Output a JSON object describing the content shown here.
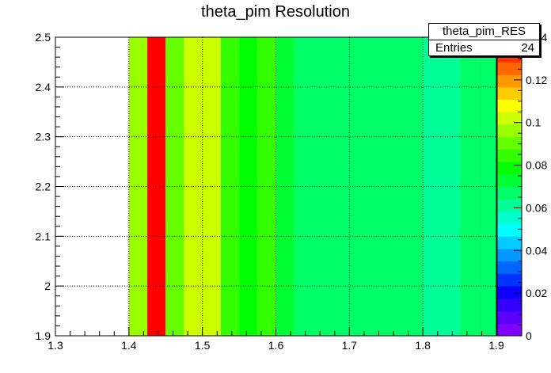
{
  "chart_data": {
    "type": "heatmap",
    "title": "theta_pim Resolution",
    "xlabel": "",
    "ylabel": "",
    "xlim": [
      1.3,
      1.9
    ],
    "ylim": [
      1.9,
      2.5
    ],
    "x_ticks": [
      "1.3",
      "1.4",
      "1.5",
      "1.6",
      "1.7",
      "1.8",
      "1.9"
    ],
    "y_ticks": [
      "1.9",
      "2",
      "2.1",
      "2.2",
      "2.3",
      "2.4",
      "2.5"
    ],
    "z_ticks": [
      "0",
      "0.02",
      "0.04",
      "0.06",
      "0.08",
      "0.1",
      "0.12",
      "0.14"
    ],
    "zlim": [
      0,
      0.14
    ],
    "grid": true,
    "cells": [
      {
        "x0": 1.4,
        "x1": 1.425,
        "y0": 1.9,
        "y1": 2.5,
        "z": 0.095
      },
      {
        "x0": 1.425,
        "x1": 1.45,
        "y0": 1.9,
        "y1": 2.5,
        "z": 0.14
      },
      {
        "x0": 1.45,
        "x1": 1.475,
        "y0": 1.9,
        "y1": 2.5,
        "z": 0.092
      },
      {
        "x0": 1.475,
        "x1": 1.5,
        "y0": 1.9,
        "y1": 2.5,
        "z": 0.1
      },
      {
        "x0": 1.5,
        "x1": 1.525,
        "y0": 1.9,
        "y1": 2.5,
        "z": 0.105
      },
      {
        "x0": 1.525,
        "x1": 1.55,
        "y0": 1.9,
        "y1": 2.5,
        "z": 0.085
      },
      {
        "x0": 1.55,
        "x1": 1.575,
        "y0": 1.9,
        "y1": 2.5,
        "z": 0.078
      },
      {
        "x0": 1.575,
        "x1": 1.6,
        "y0": 1.9,
        "y1": 2.5,
        "z": 0.083
      },
      {
        "x0": 1.6,
        "x1": 1.625,
        "y0": 1.9,
        "y1": 2.5,
        "z": 0.074
      },
      {
        "x0": 1.625,
        "x1": 1.8,
        "y0": 1.9,
        "y1": 2.5,
        "z": 0.068
      },
      {
        "x0": 1.8,
        "x1": 1.85,
        "y0": 1.9,
        "y1": 2.5,
        "z": 0.062
      },
      {
        "x0": 1.85,
        "x1": 1.875,
        "y0": 1.9,
        "y1": 2.5,
        "z": 0.068
      },
      {
        "x0": 1.875,
        "x1": 1.9,
        "y0": 1.9,
        "y1": 2.5,
        "z": 0.065
      }
    ],
    "palette": [
      "#7f00ff",
      "#5900ff",
      "#3300ff",
      "#0d00ff",
      "#0033ff",
      "#0066ff",
      "#0099ff",
      "#00ccff",
      "#00ffff",
      "#00ffcc",
      "#00ff99",
      "#00ff66",
      "#00ff33",
      "#00ff00",
      "#33ff00",
      "#66ff00",
      "#99ff00",
      "#ccff00",
      "#ffff00",
      "#ffcc00",
      "#ff9900",
      "#ff6600",
      "#ff3300",
      "#ff0000"
    ]
  },
  "statbox": {
    "name": "theta_pim_RES",
    "entries_label": "Entries",
    "entries_value": "24"
  }
}
